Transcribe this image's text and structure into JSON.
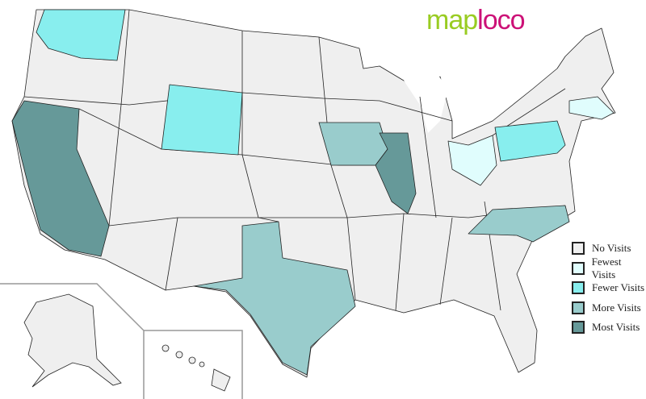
{
  "logo": {
    "part1": "map",
    "part2": "loco"
  },
  "colors": {
    "none": "#efefef",
    "fewest": "#e0fdfd",
    "fewer": "#88eeee",
    "more": "#99cccc",
    "most": "#669999"
  },
  "legend": [
    {
      "label": "No Visits",
      "level": "none"
    },
    {
      "label": "Fewest Visits",
      "level": "fewest"
    },
    {
      "label": "Fewer Visits",
      "level": "fewer"
    },
    {
      "label": "More Visits",
      "level": "more"
    },
    {
      "label": "Most Visits",
      "level": "most"
    }
  ],
  "states": [
    {
      "name": "Washington",
      "level": "fewer"
    },
    {
      "name": "California",
      "level": "most"
    },
    {
      "name": "Wyoming",
      "level": "fewer"
    },
    {
      "name": "Iowa",
      "level": "more"
    },
    {
      "name": "Illinois",
      "level": "most"
    },
    {
      "name": "Ohio",
      "level": "fewest"
    },
    {
      "name": "Pennsylvania",
      "level": "fewer"
    },
    {
      "name": "Massachusetts",
      "level": "fewest"
    },
    {
      "name": "North Carolina",
      "level": "more"
    },
    {
      "name": "Texas",
      "level": "more"
    }
  ]
}
